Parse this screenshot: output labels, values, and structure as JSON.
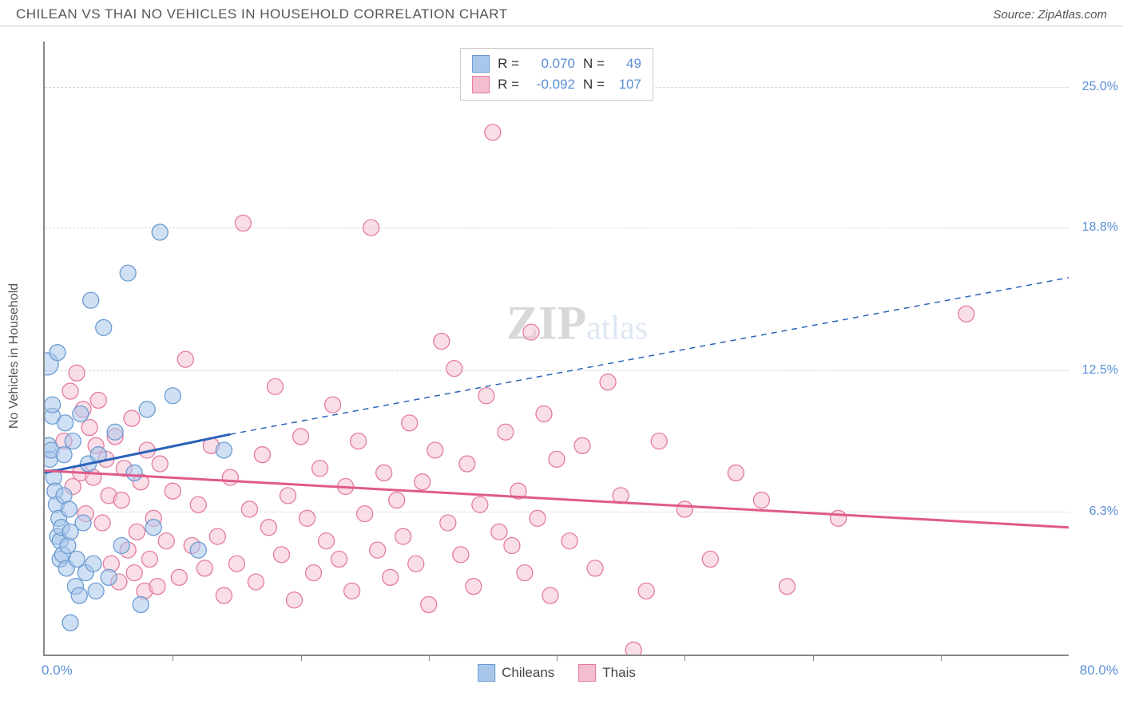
{
  "header": {
    "title": "CHILEAN VS THAI NO VEHICLES IN HOUSEHOLD CORRELATION CHART",
    "source_label": "Source: ",
    "source_name": "ZipAtlas.com"
  },
  "ylabel": "No Vehicles in Household",
  "watermark": {
    "zip": "ZIP",
    "atlas": "atlas"
  },
  "chart": {
    "type": "scatter",
    "background_color": "#ffffff",
    "grid_color": "#d8d8d8",
    "axis_color": "#888888",
    "xlim": [
      0,
      80
    ],
    "ylim": [
      0,
      27
    ],
    "xtick_step": 10,
    "xtick_positions": [
      10,
      20,
      30,
      40,
      50,
      60,
      70
    ],
    "xmin_label": "0.0%",
    "xmax_label": "80.0%",
    "ytick_positions": [
      6.3,
      12.5,
      18.8,
      25.0
    ],
    "ytick_labels": [
      "6.3%",
      "12.5%",
      "18.8%",
      "25.0%"
    ],
    "label_fontsize": 16,
    "axis_label_color": "#5b8fd6",
    "series": [
      {
        "name": "Chileans",
        "fill_color": "#a9c7eb",
        "stroke_color": "#6b9bd1",
        "fill_opacity": 0.55,
        "marker": "circle",
        "marker_radius": 10,
        "R": "0.070",
        "N": "49",
        "trend": {
          "x1": 0,
          "y1": 8.0,
          "x2": 14.5,
          "y2": 9.7,
          "color": "#2c63b8",
          "width": 3,
          "dash": "none",
          "extend_x2": 80,
          "extend_y2": 16.6,
          "extend_dash": "7 6",
          "extend_width": 1.5
        },
        "points": [
          [
            0.2,
            12.8,
            14
          ],
          [
            0.3,
            9.2,
            10
          ],
          [
            0.4,
            8.6,
            10
          ],
          [
            0.5,
            9.0,
            10
          ],
          [
            0.6,
            10.5,
            10
          ],
          [
            0.6,
            11.0,
            10
          ],
          [
            0.7,
            7.8,
            10
          ],
          [
            0.8,
            7.2,
            10
          ],
          [
            0.9,
            6.6,
            10
          ],
          [
            1.0,
            5.2,
            10
          ],
          [
            1.0,
            13.3,
            10
          ],
          [
            1.1,
            6.0,
            10
          ],
          [
            1.2,
            4.2,
            10
          ],
          [
            1.2,
            5.0,
            10
          ],
          [
            1.3,
            5.6,
            10
          ],
          [
            1.4,
            4.4,
            10
          ],
          [
            1.5,
            7.0,
            10
          ],
          [
            1.5,
            8.8,
            10
          ],
          [
            1.6,
            10.2,
            10
          ],
          [
            1.7,
            3.8,
            10
          ],
          [
            1.8,
            4.8,
            10
          ],
          [
            1.9,
            6.4,
            10
          ],
          [
            2.0,
            5.4,
            10
          ],
          [
            2.0,
            1.4,
            10
          ],
          [
            2.2,
            9.4,
            10
          ],
          [
            2.4,
            3.0,
            10
          ],
          [
            2.5,
            4.2,
            10
          ],
          [
            2.7,
            2.6,
            10
          ],
          [
            2.8,
            10.6,
            10
          ],
          [
            3.0,
            5.8,
            10
          ],
          [
            3.2,
            3.6,
            10
          ],
          [
            3.4,
            8.4,
            10
          ],
          [
            3.6,
            15.6,
            10
          ],
          [
            3.8,
            4.0,
            10
          ],
          [
            4.0,
            2.8,
            10
          ],
          [
            4.2,
            8.8,
            10
          ],
          [
            4.6,
            14.4,
            10
          ],
          [
            5.0,
            3.4,
            10
          ],
          [
            5.5,
            9.8,
            10
          ],
          [
            6.0,
            4.8,
            10
          ],
          [
            6.5,
            16.8,
            10
          ],
          [
            7.0,
            8.0,
            10
          ],
          [
            7.5,
            2.2,
            10
          ],
          [
            8.0,
            10.8,
            10
          ],
          [
            8.5,
            5.6,
            10
          ],
          [
            9.0,
            18.6,
            10
          ],
          [
            10.0,
            11.4,
            10
          ],
          [
            12.0,
            4.6,
            10
          ],
          [
            14.0,
            9.0,
            10
          ]
        ]
      },
      {
        "name": "Thais",
        "fill_color": "#f5bdd0",
        "stroke_color": "#e47aa0",
        "fill_opacity": 0.5,
        "marker": "circle",
        "marker_radius": 10,
        "R": "-0.092",
        "N": "107",
        "trend": {
          "x1": 0,
          "y1": 8.1,
          "x2": 80,
          "y2": 5.6,
          "color": "#e05a8c",
          "width": 3,
          "dash": "none"
        },
        "points": [
          [
            1.5,
            9.4,
            10
          ],
          [
            2.0,
            11.6,
            10
          ],
          [
            2.2,
            7.4,
            10
          ],
          [
            2.5,
            12.4,
            10
          ],
          [
            2.8,
            8.0,
            10
          ],
          [
            3.0,
            10.8,
            10
          ],
          [
            3.2,
            6.2,
            10
          ],
          [
            3.5,
            10.0,
            10
          ],
          [
            3.8,
            7.8,
            10
          ],
          [
            4.0,
            9.2,
            10
          ],
          [
            4.2,
            11.2,
            10
          ],
          [
            4.5,
            5.8,
            10
          ],
          [
            4.8,
            8.6,
            10
          ],
          [
            5.0,
            7.0,
            10
          ],
          [
            5.2,
            4.0,
            10
          ],
          [
            5.5,
            9.6,
            10
          ],
          [
            5.8,
            3.2,
            10
          ],
          [
            6.0,
            6.8,
            10
          ],
          [
            6.2,
            8.2,
            10
          ],
          [
            6.5,
            4.6,
            10
          ],
          [
            6.8,
            10.4,
            10
          ],
          [
            7.0,
            3.6,
            10
          ],
          [
            7.2,
            5.4,
            10
          ],
          [
            7.5,
            7.6,
            10
          ],
          [
            7.8,
            2.8,
            10
          ],
          [
            8.0,
            9.0,
            10
          ],
          [
            8.2,
            4.2,
            10
          ],
          [
            8.5,
            6.0,
            10
          ],
          [
            8.8,
            3.0,
            10
          ],
          [
            9.0,
            8.4,
            10
          ],
          [
            9.5,
            5.0,
            10
          ],
          [
            10.0,
            7.2,
            10
          ],
          [
            10.5,
            3.4,
            10
          ],
          [
            11.0,
            13.0,
            10
          ],
          [
            11.5,
            4.8,
            10
          ],
          [
            12.0,
            6.6,
            10
          ],
          [
            12.5,
            3.8,
            10
          ],
          [
            13.0,
            9.2,
            10
          ],
          [
            13.5,
            5.2,
            10
          ],
          [
            14.0,
            2.6,
            10
          ],
          [
            14.5,
            7.8,
            10
          ],
          [
            15.0,
            4.0,
            10
          ],
          [
            15.5,
            19.0,
            10
          ],
          [
            16.0,
            6.4,
            10
          ],
          [
            16.5,
            3.2,
            10
          ],
          [
            17.0,
            8.8,
            10
          ],
          [
            17.5,
            5.6,
            10
          ],
          [
            18.0,
            11.8,
            10
          ],
          [
            18.5,
            4.4,
            10
          ],
          [
            19.0,
            7.0,
            10
          ],
          [
            19.5,
            2.4,
            10
          ],
          [
            20.0,
            9.6,
            10
          ],
          [
            20.5,
            6.0,
            10
          ],
          [
            21.0,
            3.6,
            10
          ],
          [
            21.5,
            8.2,
            10
          ],
          [
            22.0,
            5.0,
            10
          ],
          [
            22.5,
            11.0,
            10
          ],
          [
            23.0,
            4.2,
            10
          ],
          [
            23.5,
            7.4,
            10
          ],
          [
            24.0,
            2.8,
            10
          ],
          [
            24.5,
            9.4,
            10
          ],
          [
            25.0,
            6.2,
            10
          ],
          [
            25.5,
            18.8,
            10
          ],
          [
            26.0,
            4.6,
            10
          ],
          [
            26.5,
            8.0,
            10
          ],
          [
            27.0,
            3.4,
            10
          ],
          [
            27.5,
            6.8,
            10
          ],
          [
            28.0,
            5.2,
            10
          ],
          [
            28.5,
            10.2,
            10
          ],
          [
            29.0,
            4.0,
            10
          ],
          [
            29.5,
            7.6,
            10
          ],
          [
            30.0,
            2.2,
            10
          ],
          [
            30.5,
            9.0,
            10
          ],
          [
            31.0,
            13.8,
            10
          ],
          [
            31.5,
            5.8,
            10
          ],
          [
            32.0,
            12.6,
            10
          ],
          [
            32.5,
            4.4,
            10
          ],
          [
            33.0,
            8.4,
            10
          ],
          [
            33.5,
            3.0,
            10
          ],
          [
            34.0,
            6.6,
            10
          ],
          [
            34.5,
            11.4,
            10
          ],
          [
            35.0,
            23.0,
            10
          ],
          [
            35.5,
            5.4,
            10
          ],
          [
            36.0,
            9.8,
            10
          ],
          [
            36.5,
            4.8,
            10
          ],
          [
            37.0,
            7.2,
            10
          ],
          [
            37.5,
            3.6,
            10
          ],
          [
            38.0,
            14.2,
            10
          ],
          [
            38.5,
            6.0,
            10
          ],
          [
            39.0,
            10.6,
            10
          ],
          [
            39.5,
            2.6,
            10
          ],
          [
            40.0,
            8.6,
            10
          ],
          [
            41.0,
            5.0,
            10
          ],
          [
            42.0,
            9.2,
            10
          ],
          [
            43.0,
            3.8,
            10
          ],
          [
            44.0,
            12.0,
            10
          ],
          [
            45.0,
            7.0,
            10
          ],
          [
            46.0,
            0.2,
            10
          ],
          [
            47.0,
            2.8,
            10
          ],
          [
            48.0,
            9.4,
            10
          ],
          [
            50.0,
            6.4,
            10
          ],
          [
            52.0,
            4.2,
            10
          ],
          [
            54.0,
            8.0,
            10
          ],
          [
            56.0,
            6.8,
            10
          ],
          [
            58.0,
            3.0,
            10
          ],
          [
            62.0,
            6.0,
            10
          ],
          [
            72.0,
            15.0,
            10
          ]
        ]
      }
    ],
    "legend_labels": {
      "r": "R =",
      "n": "N ="
    }
  }
}
